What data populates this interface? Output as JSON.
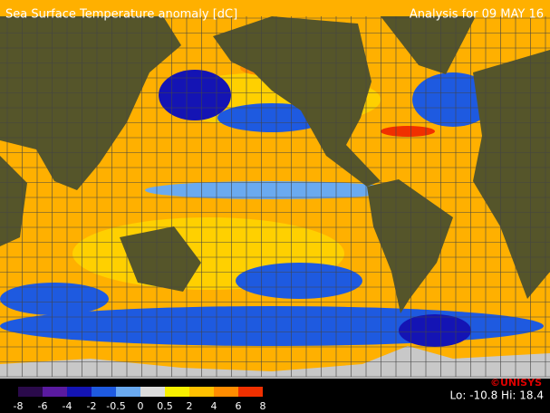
{
  "header": {
    "title": "Sea Surface Temperature anomaly [dC]",
    "analysis": "Analysis for 09 MAY 16"
  },
  "legend": {
    "ticks": [
      -8,
      -6,
      -4,
      -2,
      -0.5,
      0,
      0.5,
      2,
      4,
      6,
      8
    ],
    "colors": [
      "#2a0a4a",
      "#5a1aa0",
      "#1414b4",
      "#1e5ae0",
      "#6aaaf0",
      "#dcdcdc",
      "#f8f000",
      "#ffc000",
      "#ff8c00",
      "#f03000"
    ]
  },
  "footer": {
    "range": "Lo: -10.8 Hi: 18.4",
    "credit": "©UNISYS"
  }
}
